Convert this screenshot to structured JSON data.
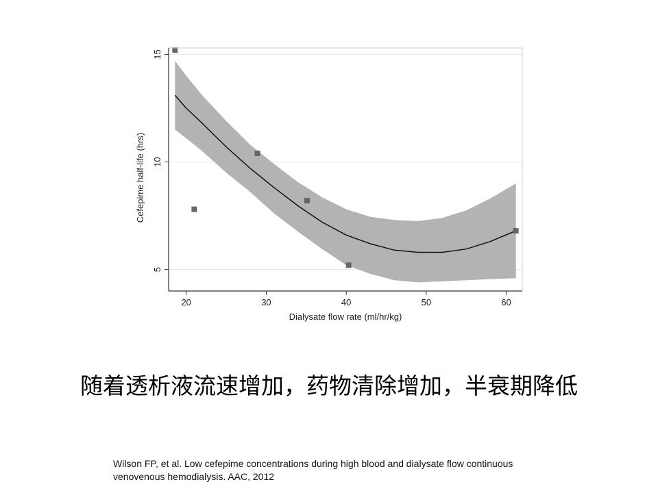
{
  "slide": {
    "caption": "随着透析液流速增加，药物清除增加，半衰期降低",
    "citation_line1": "Wilson FP, et al. Low cefepime concentrations during high blood and dialysate flow continuous",
    "citation_line2": "venovenous hemodialysis. AAC, 2012"
  },
  "chart_data": {
    "type": "scatter",
    "xlabel": "Dialysate flow rate (ml/hr/kg)",
    "ylabel": "Cefepime half-life (hrs)",
    "xlim": [
      17.8,
      62
    ],
    "ylim": [
      4,
      15.3
    ],
    "xticks": [
      20,
      30,
      40,
      50,
      60
    ],
    "yticks": [
      5,
      10,
      15
    ],
    "xtick_labels": [
      "20",
      "30",
      "40",
      "50",
      "60"
    ],
    "ytick_labels": [
      "5",
      "10",
      "15"
    ],
    "grid": true,
    "points": [
      {
        "x": 18.6,
        "y": 15.2
      },
      {
        "x": 21.0,
        "y": 7.8
      },
      {
        "x": 28.9,
        "y": 10.4
      },
      {
        "x": 35.1,
        "y": 8.2
      },
      {
        "x": 40.3,
        "y": 5.2
      },
      {
        "x": 61.2,
        "y": 6.8
      }
    ],
    "fit": {
      "type": "quadratic",
      "x": [
        18.6,
        20,
        22,
        25,
        28,
        31,
        34,
        37,
        40,
        43,
        46,
        49,
        52,
        55,
        58,
        61.2
      ],
      "y": [
        13.1,
        12.5,
        11.8,
        10.7,
        9.7,
        8.8,
        7.95,
        7.2,
        6.6,
        6.2,
        5.9,
        5.8,
        5.8,
        5.95,
        6.3,
        6.8
      ],
      "ci_lower": [
        11.5,
        11.1,
        10.5,
        9.5,
        8.6,
        7.6,
        6.75,
        5.95,
        5.2,
        4.8,
        4.5,
        4.4,
        4.45,
        4.5,
        4.55,
        4.6
      ],
      "ci_upper": [
        14.7,
        14.0,
        13.1,
        11.9,
        10.8,
        9.9,
        9.05,
        8.35,
        7.8,
        7.45,
        7.3,
        7.25,
        7.4,
        7.75,
        8.3,
        9.0
      ]
    },
    "colors": {
      "band": "#b3b3b3",
      "line": "#111111",
      "marker": "#666666",
      "grid": "#e4e4e4",
      "axis": "#333333"
    }
  }
}
